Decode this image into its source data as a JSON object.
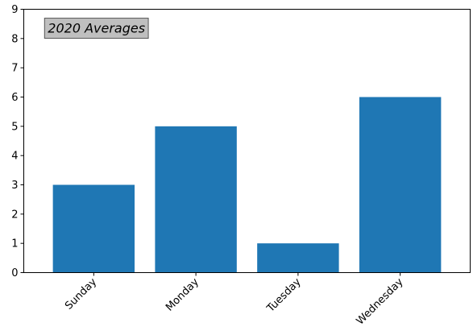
{
  "chart_data": {
    "type": "bar",
    "categories": [
      "Sunday",
      "Monday",
      "Tuesday",
      "Wednesday"
    ],
    "values": [
      3,
      5,
      1,
      6
    ],
    "ylim": [
      0,
      9
    ],
    "yticks": [
      "0",
      "1",
      "2",
      "3",
      "4",
      "5",
      "6",
      "7",
      "8",
      "9"
    ],
    "annotation": "2020 Averages",
    "annotation_anchor": {
      "x": -0.45,
      "y": 8.2
    },
    "bar_color": "#1f77b4",
    "annotation_box_color": "#bfbfbf",
    "grid": false,
    "xtick_rotation": "45 degrees"
  }
}
